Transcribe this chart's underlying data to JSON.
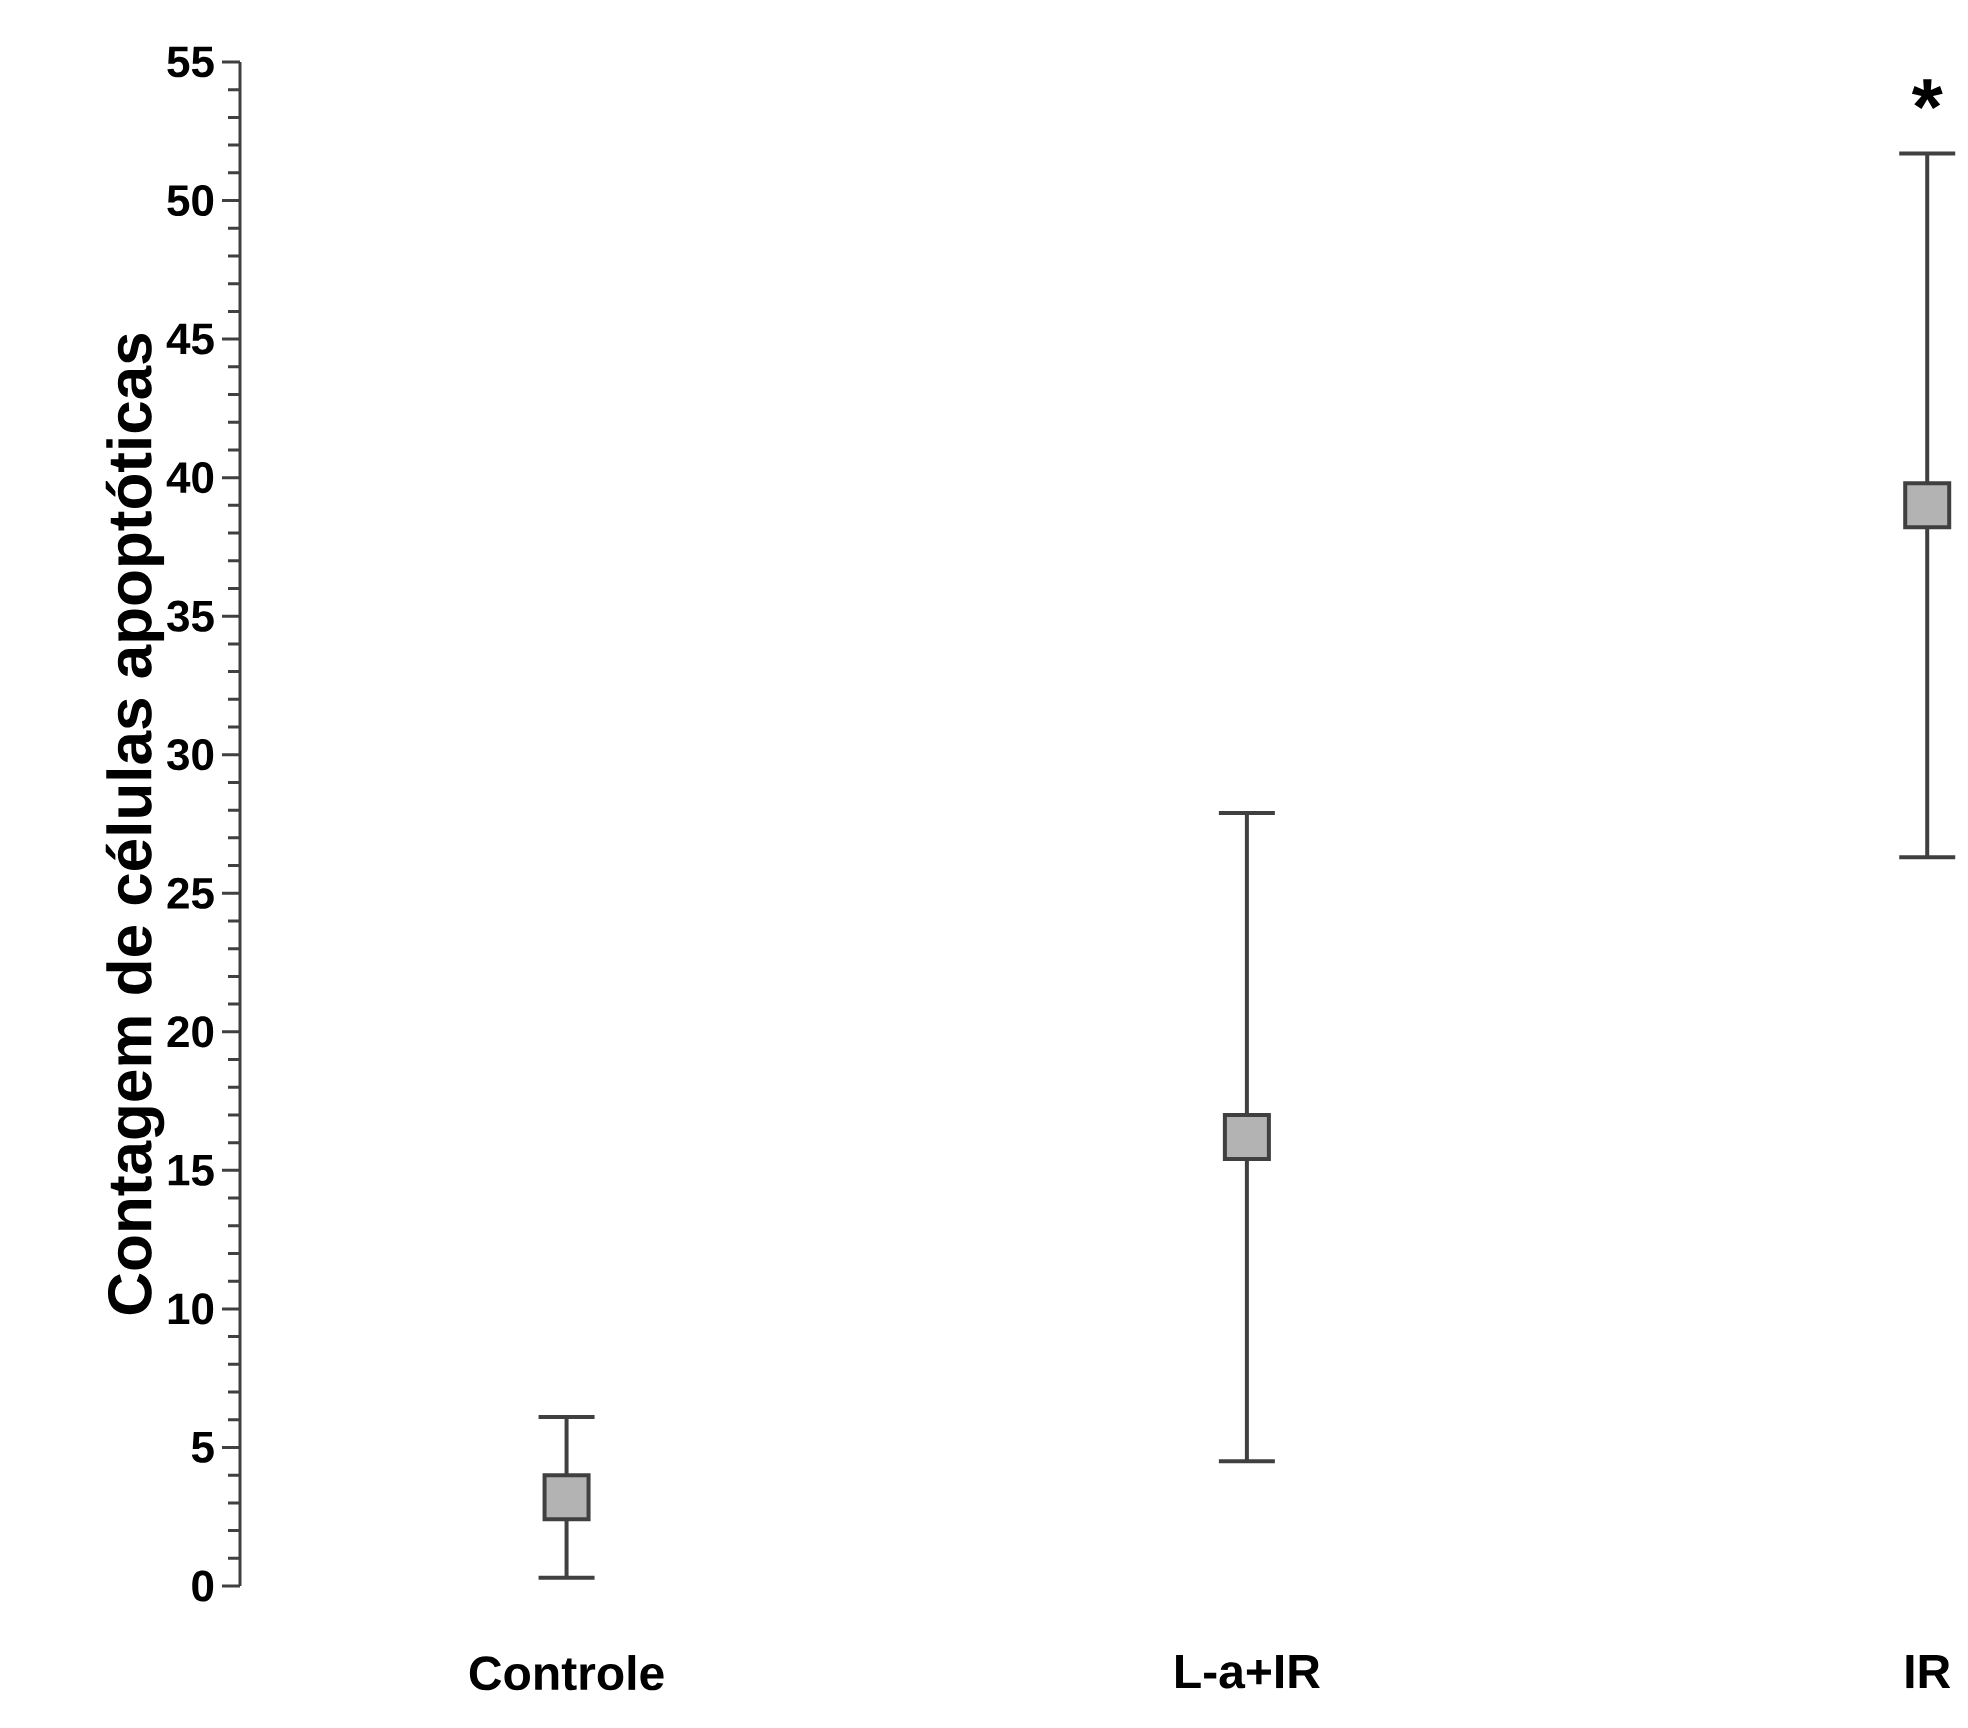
{
  "chart_data": {
    "type": "scatter",
    "ylabel": "Contagem de células apoptóticas",
    "categories": [
      "Controle",
      "L-a+IR",
      "IR"
    ],
    "values": [
      3.2,
      16.2,
      39
    ],
    "errors": [
      2.9,
      11.7,
      12.7
    ],
    "color": "#b3b3b3",
    "marker": "square",
    "ylim": [
      0,
      55
    ],
    "yticks": [
      0,
      5,
      10,
      15,
      20,
      25,
      30,
      35,
      40,
      45,
      50,
      55
    ],
    "annotations": [
      "*"
    ]
  }
}
